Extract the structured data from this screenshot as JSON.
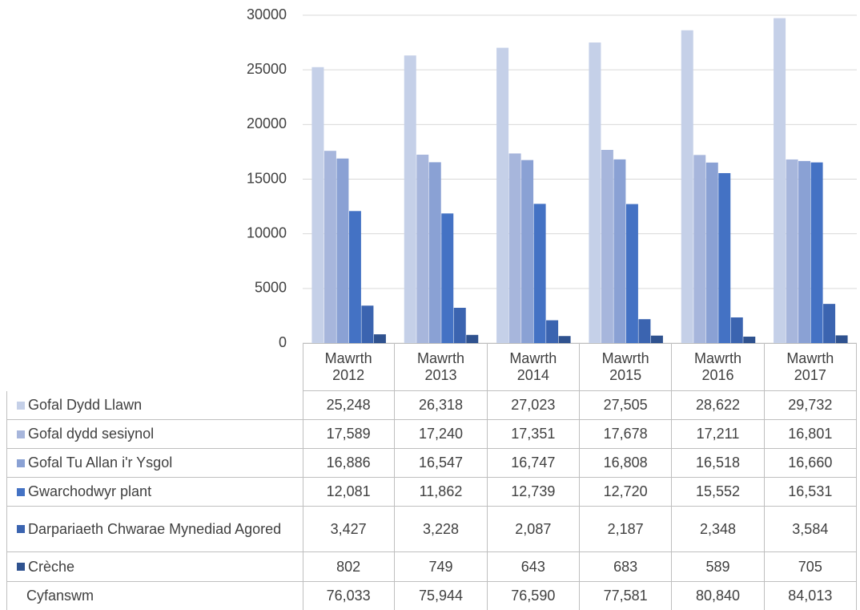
{
  "chart_data": {
    "type": "bar",
    "categories": [
      "Mawrth 2012",
      "Mawrth 2013",
      "Mawrth 2014",
      "Mawrth 2015",
      "Mawrth 2016",
      "Mawrth 2017"
    ],
    "series": [
      {
        "name": "Gofal Dydd Llawn",
        "color": "#c5d0e8",
        "values": [
          25248,
          26318,
          27023,
          27505,
          28622,
          29732
        ],
        "value_labels": [
          "25,248",
          "26,318",
          "27,023",
          "27,505",
          "28,622",
          "29,732"
        ]
      },
      {
        "name": "Gofal dydd sesiynol",
        "color": "#a7b6dc",
        "values": [
          17589,
          17240,
          17351,
          17678,
          17211,
          16801
        ],
        "value_labels": [
          "17,589",
          "17,240",
          "17,351",
          "17,678",
          "17,211",
          "16,801"
        ]
      },
      {
        "name": "Gofal Tu Allan i'r Ysgol",
        "color": "#8aa1d4",
        "values": [
          16886,
          16547,
          16747,
          16808,
          16518,
          16660
        ],
        "value_labels": [
          "16,886",
          "16,547",
          "16,747",
          "16,808",
          "16,518",
          "16,660"
        ]
      },
      {
        "name": "Gwarchodwyr plant",
        "color": "#4472c4",
        "values": [
          12081,
          11862,
          12739,
          12720,
          15552,
          16531
        ],
        "value_labels": [
          "12,081",
          "11,862",
          "12,739",
          "12,720",
          "15,552",
          "16,531"
        ]
      },
      {
        "name": "Darpariaeth Chwarae Mynediad Agored",
        "color": "#3b64b0",
        "values": [
          3427,
          3228,
          2087,
          2187,
          2348,
          3584
        ],
        "value_labels": [
          "3,427",
          "3,228",
          "2,087",
          "2,187",
          "2,348",
          "3,584"
        ]
      },
      {
        "name": "Crèche",
        "color": "#2f528f",
        "values": [
          802,
          749,
          643,
          683,
          589,
          705
        ],
        "value_labels": [
          "802",
          "749",
          "643",
          "683",
          "589",
          "705"
        ]
      }
    ],
    "totals": {
      "name": "Cyfanswm",
      "values": [
        76033,
        75944,
        76590,
        77581,
        80840,
        84013
      ],
      "value_labels": [
        "76,033",
        "75,944",
        "76,590",
        "77,581",
        "80,840",
        "84,013"
      ]
    },
    "ylim": [
      0,
      30000
    ],
    "yticks": [
      0,
      5000,
      10000,
      15000,
      20000,
      25000,
      30000
    ],
    "grid": true
  }
}
